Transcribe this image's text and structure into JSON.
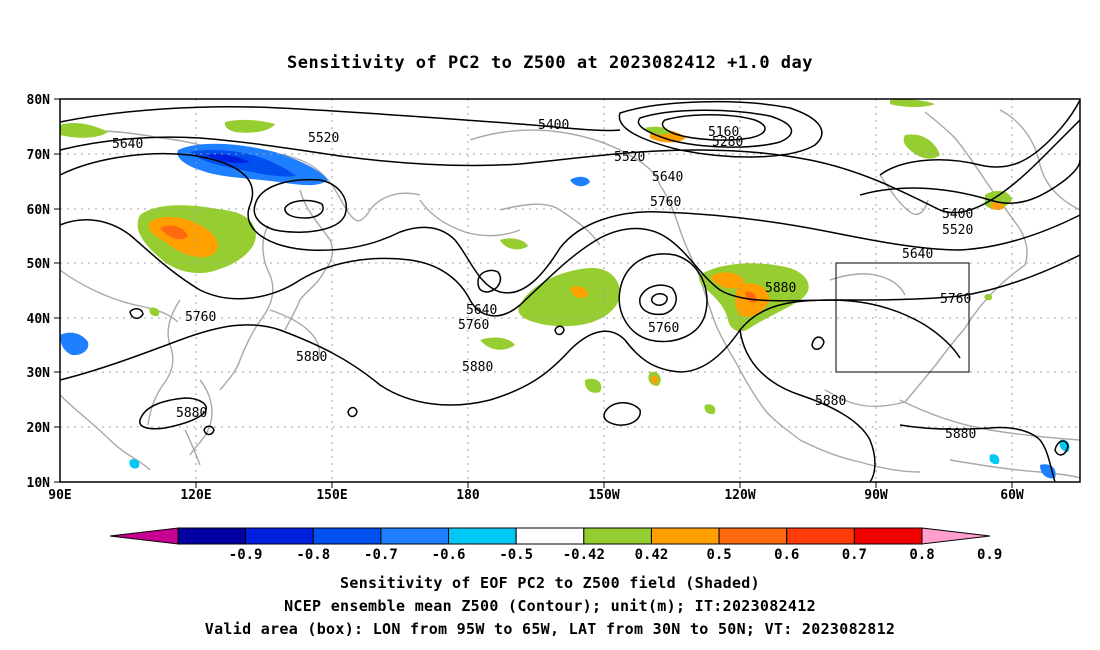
{
  "title": "Sensitivity of PC2 to Z500 at 2023082412 +1.0 day",
  "lat_ticks": [
    "80N",
    "70N",
    "60N",
    "50N",
    "40N",
    "30N",
    "20N",
    "10N"
  ],
  "lon_ticks": [
    "90E",
    "120E",
    "150E",
    "180",
    "150W",
    "120W",
    "90W",
    "60W"
  ],
  "contour_labels": [
    "5640",
    "5520",
    "5400",
    "5160",
    "5280",
    "5520",
    "5640",
    "5760",
    "5400",
    "5520",
    "5640",
    "5760",
    "5880",
    "5640",
    "5760",
    "5760",
    "5760",
    "5880",
    "5880",
    "5880",
    "5880",
    "5880"
  ],
  "colorbar": {
    "labels": [
      "-0.9",
      "-0.8",
      "-0.7",
      "-0.6",
      "-0.5",
      "-0.42",
      "0.42",
      "0.5",
      "0.6",
      "0.7",
      "0.8",
      "0.9"
    ],
    "colors": [
      "#c80090",
      "#0000a0",
      "#0020e0",
      "#0050f0",
      "#1e80ff",
      "#00c8f5",
      "#ffffff",
      "#96cd30",
      "#ff9f00",
      "#ff6a10",
      "#ff3c0a",
      "#f50000",
      "#ff9fcf"
    ]
  },
  "valid_box": {
    "lon_from": "95W",
    "lon_to": "65W",
    "lat_from": "30N",
    "lat_to": "50N"
  },
  "captions": [
    "Sensitivity of EOF PC2 to Z500 field (Shaded)",
    "NCEP ensemble mean Z500 (Contour); unit(m); IT:2023082412",
    "Valid area (box): LON from 95W to 65W, LAT from 30N to 50N; VT: 2023082812"
  ],
  "colors": {
    "coast": "#a8a8a8",
    "grid": "#a0a0a0",
    "contour": "#000000"
  }
}
